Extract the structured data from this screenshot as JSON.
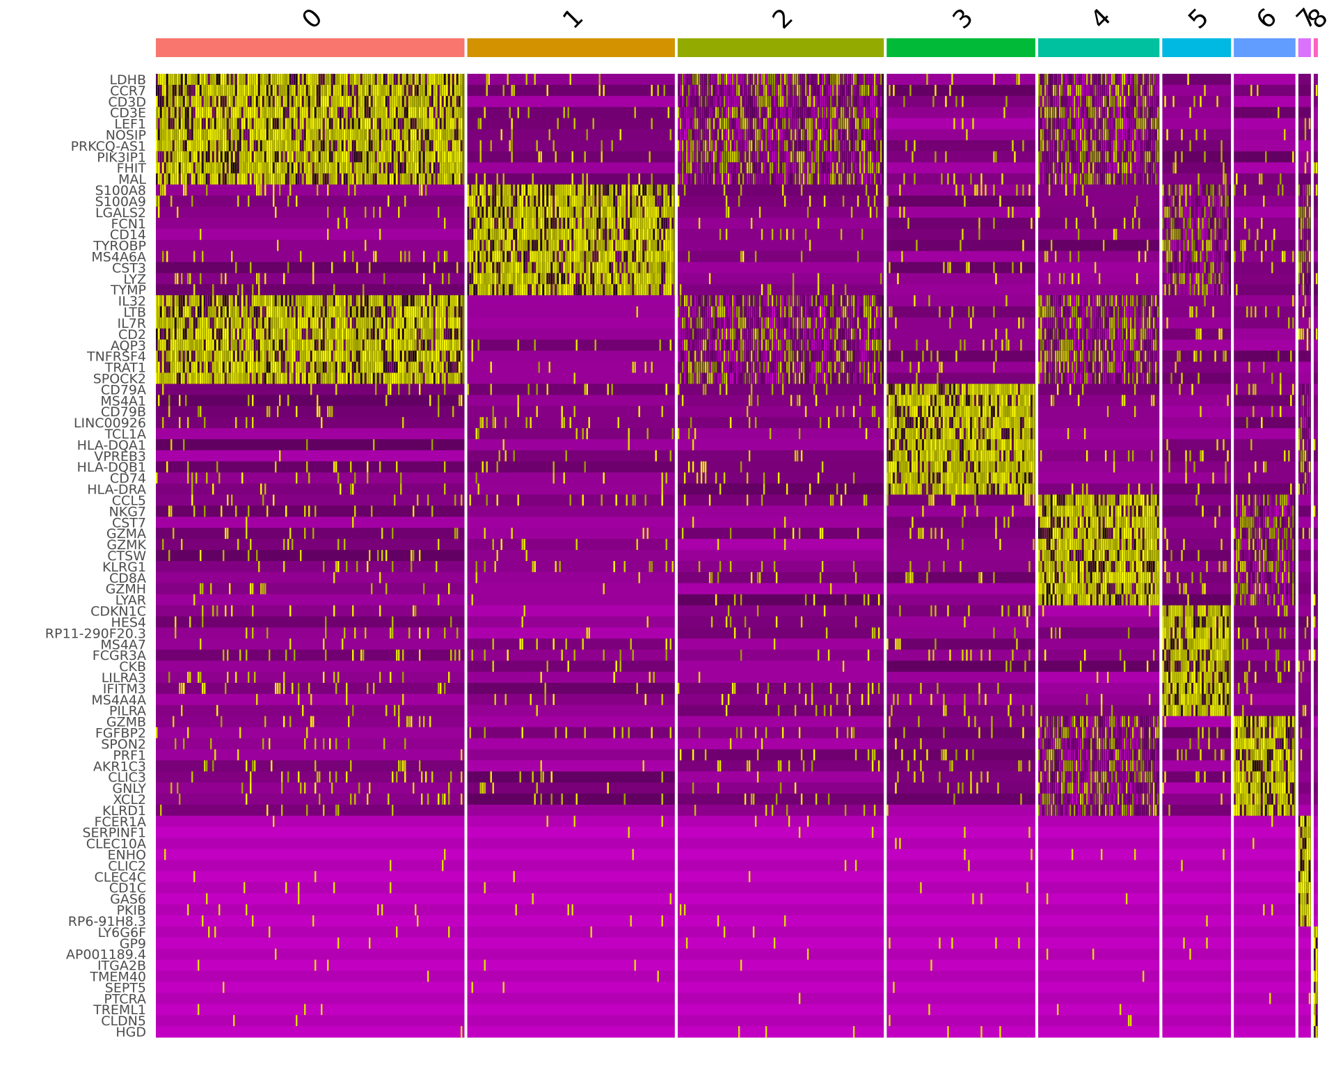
{
  "chart_data": {
    "type": "heatmap",
    "title": "",
    "xlabel": "",
    "ylabel": "",
    "legend": "none",
    "color_scale": {
      "low": "#ff00ff",
      "mid": "#000000",
      "high": "#ffff00"
    },
    "clusters": [
      {
        "label": "0",
        "color": "#f8766d",
        "cells": 440
      },
      {
        "label": "1",
        "color": "#d39200",
        "cells": 296
      },
      {
        "label": "2",
        "color": "#93aa00",
        "cells": 294
      },
      {
        "label": "3",
        "color": "#00ba38",
        "cells": 212
      },
      {
        "label": "4",
        "color": "#00c19f",
        "cells": 173
      },
      {
        "label": "5",
        "color": "#00b9e3",
        "cells": 98
      },
      {
        "label": "6",
        "color": "#619cff",
        "cells": 88
      },
      {
        "label": "7",
        "color": "#db72fb",
        "cells": 18
      },
      {
        "label": "8",
        "color": "#ff61c3",
        "cells": 6
      }
    ],
    "genes": [
      "LDHB",
      "CCR7",
      "CD3D",
      "CD3E",
      "LEF1",
      "NOSIP",
      "PRKCQ-AS1",
      "PIK3IP1",
      "FHIT",
      "MAL",
      "S100A8",
      "S100A9",
      "LGALS2",
      "FCN1",
      "CD14",
      "TYROBP",
      "MS4A6A",
      "CST3",
      "LYZ",
      "TYMP",
      "IL32",
      "LTB",
      "IL7R",
      "CD2",
      "AQP3",
      "TNFRSF4",
      "TRAT1",
      "SPOCK2",
      "CD79A",
      "MS4A1",
      "CD79B",
      "LINC00926",
      "TCL1A",
      "HLA-DQA1",
      "VPREB3",
      "HLA-DQB1",
      "CD74",
      "HLA-DRA",
      "CCL5",
      "NKG7",
      "CST7",
      "GZMA",
      "GZMK",
      "CTSW",
      "KLRG1",
      "CD8A",
      "GZMH",
      "LYAR",
      "CDKN1C",
      "HES4",
      "RP11-290F20.3",
      "MS4A7",
      "FCGR3A",
      "CKB",
      "LILRA3",
      "IFITM3",
      "MS4A4A",
      "PILRA",
      "GZMB",
      "FGFBP2",
      "SPON2",
      "PRF1",
      "AKR1C3",
      "CLIC3",
      "GNLY",
      "XCL2",
      "KLRD1",
      "FCER1A",
      "SERPINF1",
      "CLEC10A",
      "ENHO",
      "CLIC2",
      "CLEC4C",
      "CD1C",
      "GAS6",
      "PKIB",
      "RP6-91H8.3",
      "LY6G6F",
      "GP9",
      "AP001189.4",
      "ITGA2B",
      "TMEM40",
      "SEPT5",
      "PTCRA",
      "TREML1",
      "CLDN5",
      "HGD"
    ],
    "marker_sets": [
      {
        "genes": [
          "LDHB",
          "CCR7",
          "CD3D",
          "CD3E",
          "LEF1",
          "NOSIP",
          "PRKCQ-AS1",
          "PIK3IP1",
          "FHIT",
          "MAL"
        ],
        "high_in": [
          "0",
          "2",
          "4"
        ]
      },
      {
        "genes": [
          "S100A8",
          "S100A9",
          "LGALS2",
          "FCN1",
          "CD14",
          "TYROBP",
          "MS4A6A",
          "CST3",
          "LYZ",
          "TYMP"
        ],
        "high_in": [
          "1",
          "5",
          "7"
        ]
      },
      {
        "genes": [
          "IL32",
          "LTB",
          "IL7R",
          "CD2",
          "AQP3",
          "TNFRSF4",
          "TRAT1",
          "SPOCK2"
        ],
        "high_in": [
          "0",
          "2",
          "4"
        ]
      },
      {
        "genes": [
          "CD79A",
          "MS4A1",
          "CD79B",
          "LINC00926",
          "TCL1A",
          "HLA-DQA1",
          "VPREB3",
          "HLA-DQB1",
          "CD74",
          "HLA-DRA"
        ],
        "high_in": [
          "3",
          "7"
        ]
      },
      {
        "genes": [
          "CCL5",
          "NKG7",
          "CST7",
          "GZMA",
          "GZMK",
          "CTSW",
          "KLRG1",
          "CD8A",
          "GZMH",
          "LYAR"
        ],
        "high_in": [
          "4",
          "6"
        ]
      },
      {
        "genes": [
          "CDKN1C",
          "HES4",
          "RP11-290F20.3",
          "MS4A7",
          "FCGR3A",
          "CKB",
          "LILRA3",
          "IFITM3",
          "MS4A4A",
          "PILRA"
        ],
        "high_in": [
          "5"
        ]
      },
      {
        "genes": [
          "GZMB",
          "FGFBP2",
          "SPON2",
          "PRF1",
          "AKR1C3",
          "CLIC3",
          "GNLY",
          "XCL2",
          "KLRD1"
        ],
        "high_in": [
          "6",
          "4"
        ]
      },
      {
        "genes": [
          "FCER1A",
          "SERPINF1",
          "CLEC10A",
          "ENHO",
          "CLIC2",
          "CLEC4C",
          "CD1C",
          "GAS6",
          "PKIB",
          "RP6-91H8.3"
        ],
        "high_in": [
          "7"
        ]
      },
      {
        "genes": [
          "LY6G6F",
          "GP9",
          "AP001189.4",
          "ITGA2B",
          "TMEM40",
          "SEPT5",
          "PTCRA",
          "TREML1",
          "CLDN5",
          "HGD"
        ],
        "high_in": [
          "8"
        ]
      }
    ]
  }
}
